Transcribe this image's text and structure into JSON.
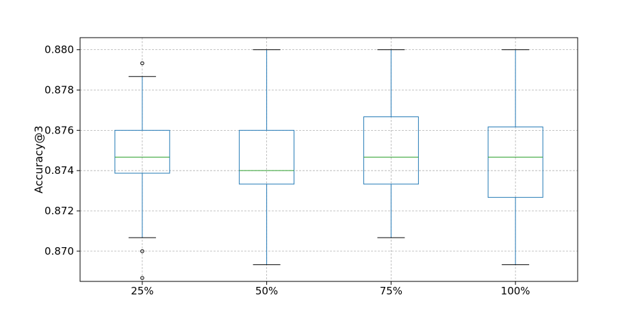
{
  "chart_data": {
    "type": "box",
    "title": "",
    "xlabel": "",
    "ylabel": "Accuracy@3",
    "ylim": [
      0.8685,
      0.8806
    ],
    "yticks": [
      0.87,
      0.872,
      0.874,
      0.876,
      0.878,
      0.88
    ],
    "ytick_labels": [
      "0.870",
      "0.872",
      "0.874",
      "0.876",
      "0.878",
      "0.880"
    ],
    "grid": true,
    "categories": [
      "25%",
      "50%",
      "75%",
      "100%"
    ],
    "boxes": [
      {
        "label": "25%",
        "whisker_low": 0.87067,
        "q1": 0.87387,
        "median": 0.87467,
        "q3": 0.876,
        "whisker_high": 0.87867,
        "outliers": [
          0.87933,
          0.87,
          0.86867
        ]
      },
      {
        "label": "50%",
        "whisker_low": 0.86933,
        "q1": 0.87333,
        "median": 0.874,
        "q3": 0.876,
        "whisker_high": 0.88,
        "outliers": []
      },
      {
        "label": "75%",
        "whisker_low": 0.87067,
        "q1": 0.87333,
        "median": 0.87467,
        "q3": 0.87667,
        "whisker_high": 0.88,
        "outliers": []
      },
      {
        "label": "100%",
        "whisker_low": 0.86933,
        "q1": 0.87267,
        "median": 0.87467,
        "q3": 0.87617,
        "whisker_high": 0.88,
        "outliers": []
      }
    ],
    "colors": {
      "box": "#1f77b4",
      "median": "#2ca02c",
      "whisker_cap": "#000000",
      "grid": "#b0b0b0",
      "frame": "#000000"
    }
  }
}
